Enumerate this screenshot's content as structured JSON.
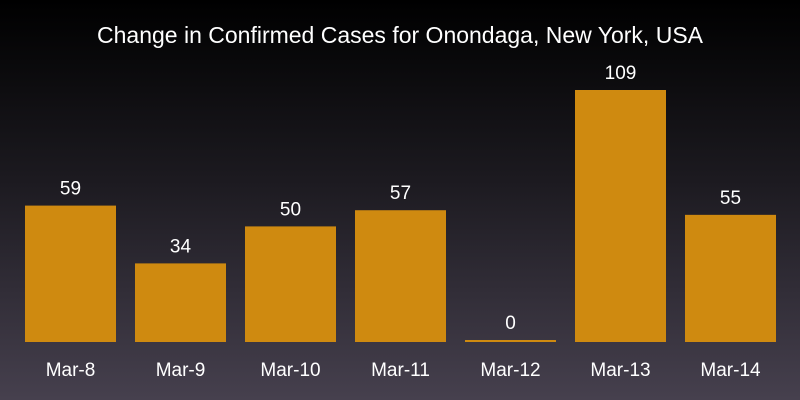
{
  "chart_data": {
    "type": "bar",
    "title": "Change in Confirmed Cases for Onondaga, New York, USA",
    "categories": [
      "Mar-8",
      "Mar-9",
      "Mar-10",
      "Mar-11",
      "Mar-12",
      "Mar-13",
      "Mar-14"
    ],
    "values": [
      59,
      34,
      50,
      57,
      0,
      109,
      55
    ],
    "data_labels": [
      "59",
      "34",
      "50",
      "57",
      "0",
      "109",
      "55"
    ],
    "xlabel": "",
    "ylabel": "",
    "ylim": [
      0,
      109
    ],
    "grid": false,
    "legend": "none",
    "colors": {
      "bar": "#cf8a10",
      "text": "#ffffff",
      "background_top": "#000000",
      "background_bottom": "#46404e"
    }
  }
}
